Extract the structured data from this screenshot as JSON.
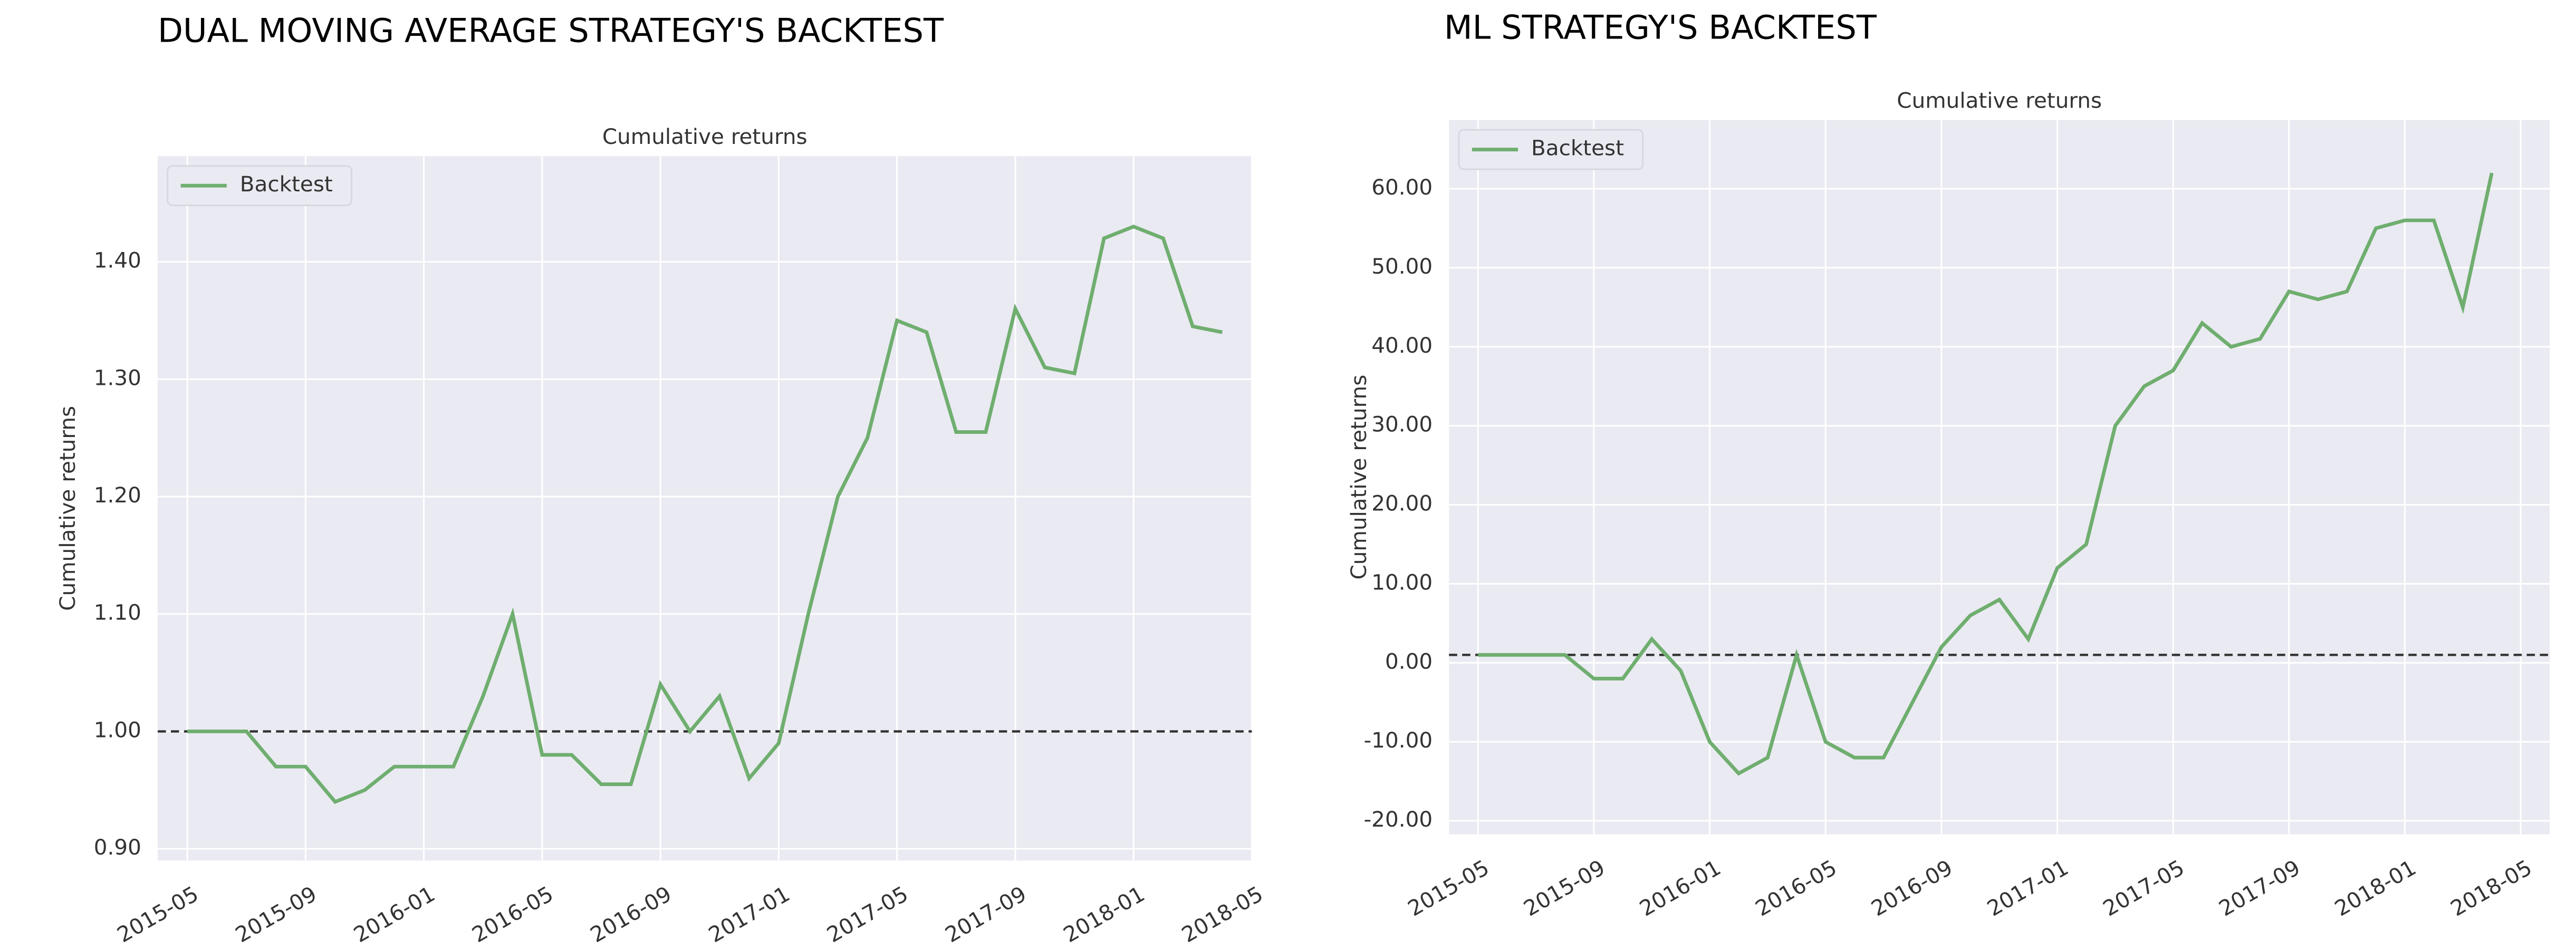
{
  "chart_data": [
    {
      "type": "line",
      "heading": "DUAL MOVING AVERAGE STRATEGY'S BACKTEST",
      "title": "Cumulative returns",
      "ylabel": "Cumulative returns",
      "x": [
        "2015-05",
        "2015-06",
        "2015-07",
        "2015-08",
        "2015-09",
        "2015-10",
        "2015-11",
        "2015-12",
        "2016-01",
        "2016-02",
        "2016-03",
        "2016-04",
        "2016-05",
        "2016-06",
        "2016-07",
        "2016-08",
        "2016-09",
        "2016-10",
        "2016-11",
        "2016-12",
        "2017-01",
        "2017-02",
        "2017-03",
        "2017-04",
        "2017-05",
        "2017-06",
        "2017-07",
        "2017-08",
        "2017-09",
        "2017-10",
        "2017-11",
        "2017-12",
        "2018-01",
        "2018-02",
        "2018-03",
        "2018-04"
      ],
      "series": [
        {
          "name": "Backtest",
          "color": "#6fae6f",
          "values": [
            1.0,
            1.0,
            1.0,
            0.97,
            0.97,
            0.94,
            0.95,
            0.97,
            0.97,
            0.97,
            1.03,
            1.1,
            0.98,
            0.98,
            0.955,
            0.955,
            1.04,
            1.0,
            1.03,
            0.96,
            0.99,
            1.1,
            1.2,
            1.25,
            1.35,
            1.34,
            1.255,
            1.255,
            1.36,
            1.31,
            1.305,
            1.42,
            1.43,
            1.42,
            1.345,
            1.34
          ]
        }
      ],
      "hline": 1,
      "xlim": [
        "2015-04",
        "2018-05"
      ],
      "xticks": [
        "2015-05",
        "2015-09",
        "2016-01",
        "2016-05",
        "2016-09",
        "2017-01",
        "2017-05",
        "2017-09",
        "2018-01",
        "2018-05"
      ],
      "ylim": [
        0.89,
        1.49
      ],
      "yticks": [
        {
          "value": 0.9,
          "label": "0.90"
        },
        {
          "value": 1.0,
          "label": "1.00"
        },
        {
          "value": 1.1,
          "label": "1.10"
        },
        {
          "value": 1.2,
          "label": "1.20"
        },
        {
          "value": 1.3,
          "label": "1.30"
        },
        {
          "value": 1.4,
          "label": "1.40"
        }
      ],
      "grid": true,
      "legend": "upper-left"
    },
    {
      "type": "line",
      "heading": "ML STRATEGY'S BACKTEST",
      "title": "Cumulative returns",
      "ylabel": "Cumulative returns",
      "x": [
        "2015-05",
        "2015-06",
        "2015-07",
        "2015-08",
        "2015-09",
        "2015-10",
        "2015-11",
        "2015-12",
        "2016-01",
        "2016-02",
        "2016-03",
        "2016-04",
        "2016-05",
        "2016-06",
        "2016-07",
        "2016-08",
        "2016-09",
        "2016-10",
        "2016-11",
        "2016-12",
        "2017-01",
        "2017-02",
        "2017-03",
        "2017-04",
        "2017-05",
        "2017-06",
        "2017-07",
        "2017-08",
        "2017-09",
        "2017-10",
        "2017-11",
        "2017-12",
        "2018-01",
        "2018-02",
        "2018-03",
        "2018-04"
      ],
      "series": [
        {
          "name": "Backtest",
          "color": "#6fae6f",
          "values": [
            1,
            1,
            1,
            1,
            -2,
            -2,
            3,
            -1,
            -10,
            -14,
            -12,
            1,
            -10,
            -12,
            -12,
            -5,
            2,
            6,
            8,
            3,
            12,
            15,
            30,
            35,
            37,
            43,
            40,
            41,
            47,
            46,
            47,
            55,
            56,
            56,
            45,
            62
          ]
        }
      ],
      "hline": 1,
      "xlim": [
        "2015-04",
        "2018-06"
      ],
      "xticks": [
        "2015-05",
        "2015-09",
        "2016-01",
        "2016-05",
        "2016-09",
        "2017-01",
        "2017-05",
        "2017-09",
        "2018-01",
        "2018-05"
      ],
      "ylim": [
        -21.7,
        68.7
      ],
      "yticks": [
        {
          "value": -20,
          "label": "-20.00"
        },
        {
          "value": -10,
          "label": "-10.00"
        },
        {
          "value": 0,
          "label": "0.00"
        },
        {
          "value": 10,
          "label": "10.00"
        },
        {
          "value": 20,
          "label": "20.00"
        },
        {
          "value": 30,
          "label": "30.00"
        },
        {
          "value": 40,
          "label": "40.00"
        },
        {
          "value": 50,
          "label": "50.00"
        },
        {
          "value": 60,
          "label": "60.00"
        }
      ],
      "grid": true,
      "legend": "upper-left"
    }
  ]
}
